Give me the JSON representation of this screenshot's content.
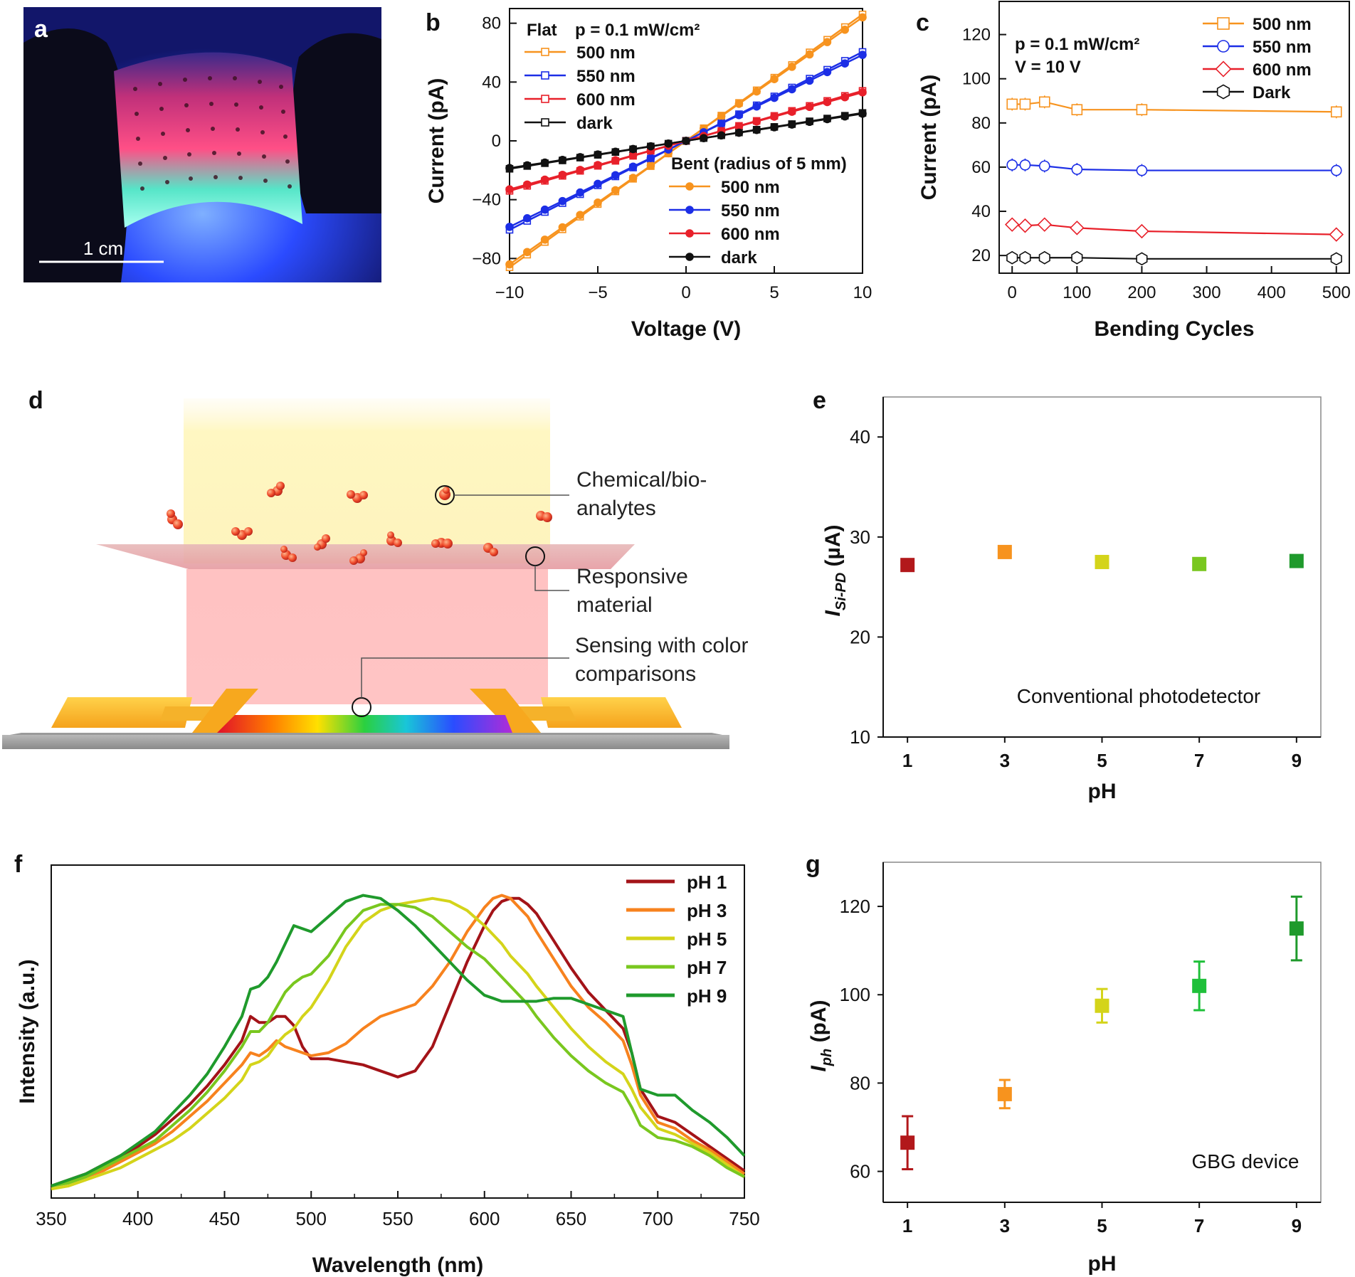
{
  "figure": {
    "panels": [
      "a",
      "b",
      "c",
      "d",
      "e",
      "f",
      "g"
    ]
  },
  "panel_a": {
    "label": "a",
    "scale_bar_label": "1 cm",
    "description_colors": [
      "#1a1f6b",
      "#e0467a",
      "#38e0b8",
      "#3a5cff"
    ]
  },
  "panel_d": {
    "label": "d",
    "callout_analytes_1": "Chemical/bio-",
    "callout_analytes_2": "analytes",
    "callout_material_1": "Responsive",
    "callout_material_2": "material",
    "callout_sensing_1": "Sensing with color",
    "callout_sensing_2": "comparisons"
  },
  "chart_data": [
    {
      "id": "b",
      "type": "line",
      "label": "b",
      "xlabel": "Voltage (V)",
      "ylabel": "Current (pA)",
      "xlim": [
        -10,
        10
      ],
      "ylim": [
        -90,
        90
      ],
      "xticks": [
        -10,
        -5,
        0,
        5,
        10
      ],
      "xtick_labels": [
        "−10",
        "−5",
        "0",
        "5",
        "10"
      ],
      "yticks": [
        -80,
        -40,
        0,
        40,
        80
      ],
      "ytick_labels": [
        "−80",
        "−40",
        "0",
        "40",
        "80"
      ],
      "legend_flat_title": "Flat",
      "legend_power": "p = 0.1 mW/cm²",
      "legend_bent_title": "Bent (radius of 5 mm)",
      "series": [
        {
          "name": "500 nm",
          "group": "flat",
          "color": "#f7931e",
          "slope": 8.6,
          "marker": "open-square"
        },
        {
          "name": "550 nm",
          "group": "flat",
          "color": "#1c2ee6",
          "slope": 6.05,
          "marker": "open-square"
        },
        {
          "name": "600 nm",
          "group": "flat",
          "color": "#e8202a",
          "slope": 3.4,
          "marker": "open-square"
        },
        {
          "name": "dark",
          "group": "flat",
          "color": "#111111",
          "slope": 1.9,
          "marker": "open-square"
        },
        {
          "name": "500 nm",
          "group": "bent",
          "color": "#f7931e",
          "slope": 8.4,
          "marker": "filled-circle"
        },
        {
          "name": "550 nm",
          "group": "bent",
          "color": "#1c2ee6",
          "slope": 5.85,
          "marker": "filled-circle"
        },
        {
          "name": "600 nm",
          "group": "bent",
          "color": "#e8202a",
          "slope": 3.3,
          "marker": "filled-circle"
        },
        {
          "name": "dark",
          "group": "bent",
          "color": "#111111",
          "slope": 1.85,
          "marker": "filled-circle"
        }
      ]
    },
    {
      "id": "c",
      "type": "line",
      "label": "c",
      "xlabel": "Bending Cycles",
      "ylabel": "Current (pA)",
      "xlim": [
        -20,
        520
      ],
      "ylim": [
        12,
        135
      ],
      "xticks": [
        0,
        100,
        200,
        300,
        400,
        500
      ],
      "yticks": [
        20,
        40,
        60,
        80,
        100,
        120
      ],
      "annotation_power": "p = 0.1 mW/cm²",
      "annotation_voltage": "V = 10 V",
      "x": [
        0,
        20,
        50,
        100,
        200,
        500
      ],
      "series": [
        {
          "name": "500 nm",
          "color": "#f7931e",
          "marker": "square",
          "values": [
            88.5,
            88.5,
            89.5,
            86,
            86,
            85
          ]
        },
        {
          "name": "550 nm",
          "color": "#1c2ee6",
          "marker": "circle",
          "values": [
            61,
            61,
            60.5,
            59,
            58.5,
            58.5
          ]
        },
        {
          "name": "600 nm",
          "color": "#e8202a",
          "marker": "diamond",
          "values": [
            34,
            33.5,
            34,
            32.5,
            31,
            29.5
          ]
        },
        {
          "name": "Dark",
          "color": "#111111",
          "marker": "hexagon",
          "values": [
            19,
            19,
            19,
            19,
            18.5,
            18.5
          ]
        }
      ]
    },
    {
      "id": "e",
      "type": "scatter",
      "label": "e",
      "xlabel": "pH",
      "ylabel": "I",
      "ylabel_sub": "Si-PD",
      "ylabel_unit": " (µA)",
      "xlim": [
        0.5,
        9.5
      ],
      "ylim": [
        10,
        44
      ],
      "xticks": [
        1,
        3,
        5,
        7,
        9
      ],
      "yticks": [
        10,
        20,
        30,
        40
      ],
      "annotation": "Conventional photodetector",
      "points": [
        {
          "x": 1,
          "y": 27.2,
          "color": "#b2181b"
        },
        {
          "x": 3,
          "y": 28.5,
          "color": "#f7931e"
        },
        {
          "x": 5,
          "y": 27.5,
          "color": "#d4d41a"
        },
        {
          "x": 7,
          "y": 27.3,
          "color": "#79c71f"
        },
        {
          "x": 9,
          "y": 27.6,
          "color": "#1f9a2c"
        }
      ]
    },
    {
      "id": "f",
      "type": "line",
      "label": "f",
      "xlabel": "Wavelength (nm)",
      "ylabel": "Intensity (a.u.)",
      "xlim": [
        350,
        750
      ],
      "ylim": [
        0,
        1.1
      ],
      "xticks": [
        350,
        400,
        450,
        500,
        550,
        600,
        650,
        700,
        750
      ],
      "x": [
        350,
        360,
        370,
        380,
        390,
        400,
        410,
        420,
        430,
        440,
        450,
        460,
        465,
        470,
        475,
        480,
        485,
        490,
        495,
        500,
        510,
        520,
        530,
        540,
        550,
        560,
        570,
        580,
        590,
        600,
        605,
        610,
        615,
        620,
        625,
        630,
        640,
        650,
        660,
        670,
        680,
        685,
        690,
        700,
        710,
        720,
        730,
        740,
        750
      ],
      "series": [
        {
          "name": "pH 1",
          "color": "#a31318",
          "values": [
            0.04,
            0.06,
            0.08,
            0.11,
            0.14,
            0.17,
            0.21,
            0.26,
            0.31,
            0.37,
            0.44,
            0.52,
            0.6,
            0.58,
            0.58,
            0.6,
            0.6,
            0.57,
            0.5,
            0.46,
            0.46,
            0.45,
            0.44,
            0.42,
            0.4,
            0.42,
            0.5,
            0.64,
            0.78,
            0.9,
            0.95,
            0.98,
            0.99,
            0.99,
            0.97,
            0.94,
            0.85,
            0.76,
            0.68,
            0.62,
            0.56,
            0.48,
            0.36,
            0.27,
            0.25,
            0.21,
            0.17,
            0.13,
            0.09
          ]
        },
        {
          "name": "pH 3",
          "color": "#f7821e",
          "values": [
            0.04,
            0.05,
            0.07,
            0.09,
            0.12,
            0.15,
            0.18,
            0.22,
            0.27,
            0.32,
            0.38,
            0.44,
            0.48,
            0.47,
            0.49,
            0.52,
            0.5,
            0.49,
            0.48,
            0.47,
            0.48,
            0.51,
            0.56,
            0.6,
            0.62,
            0.64,
            0.7,
            0.78,
            0.88,
            0.96,
            0.99,
            1.0,
            0.99,
            0.96,
            0.93,
            0.88,
            0.79,
            0.7,
            0.63,
            0.58,
            0.52,
            0.44,
            0.34,
            0.25,
            0.23,
            0.19,
            0.16,
            0.12,
            0.08
          ]
        },
        {
          "name": "pH 5",
          "color": "#d4d41a",
          "values": [
            0.03,
            0.04,
            0.06,
            0.08,
            0.1,
            0.13,
            0.16,
            0.19,
            0.23,
            0.28,
            0.33,
            0.39,
            0.44,
            0.45,
            0.47,
            0.51,
            0.54,
            0.56,
            0.6,
            0.63,
            0.72,
            0.83,
            0.91,
            0.95,
            0.97,
            0.98,
            0.99,
            0.98,
            0.95,
            0.9,
            0.87,
            0.84,
            0.8,
            0.77,
            0.74,
            0.7,
            0.63,
            0.56,
            0.5,
            0.45,
            0.41,
            0.36,
            0.3,
            0.23,
            0.21,
            0.18,
            0.15,
            0.11,
            0.07
          ]
        },
        {
          "name": "pH 7",
          "color": "#79c71f",
          "values": [
            0.04,
            0.05,
            0.07,
            0.1,
            0.13,
            0.16,
            0.19,
            0.24,
            0.29,
            0.35,
            0.42,
            0.5,
            0.55,
            0.55,
            0.58,
            0.63,
            0.68,
            0.71,
            0.73,
            0.74,
            0.8,
            0.89,
            0.95,
            0.97,
            0.97,
            0.96,
            0.93,
            0.88,
            0.83,
            0.79,
            0.76,
            0.73,
            0.7,
            0.67,
            0.64,
            0.6,
            0.53,
            0.47,
            0.42,
            0.38,
            0.35,
            0.3,
            0.24,
            0.2,
            0.19,
            0.17,
            0.14,
            0.1,
            0.07
          ]
        },
        {
          "name": "pH 9",
          "color": "#1f9a2c",
          "values": [
            0.04,
            0.06,
            0.08,
            0.11,
            0.14,
            0.18,
            0.22,
            0.28,
            0.34,
            0.41,
            0.5,
            0.6,
            0.69,
            0.7,
            0.73,
            0.78,
            0.84,
            0.9,
            0.89,
            0.88,
            0.93,
            0.98,
            1.0,
            0.99,
            0.95,
            0.9,
            0.84,
            0.78,
            0.72,
            0.67,
            0.66,
            0.65,
            0.65,
            0.65,
            0.65,
            0.65,
            0.66,
            0.66,
            0.64,
            0.62,
            0.6,
            0.48,
            0.36,
            0.34,
            0.34,
            0.29,
            0.25,
            0.2,
            0.14
          ]
        }
      ]
    },
    {
      "id": "g",
      "type": "scatter",
      "label": "g",
      "xlabel": "pH",
      "ylabel": "I",
      "ylabel_sub": "ph",
      "ylabel_unit": " (pA)",
      "xlim": [
        0.5,
        9.5
      ],
      "ylim": [
        53,
        130
      ],
      "xticks": [
        1,
        3,
        5,
        7,
        9
      ],
      "yticks": [
        60,
        80,
        100,
        120
      ],
      "annotation": "GBG device",
      "points": [
        {
          "x": 1,
          "y": 66.5,
          "err": 6,
          "color": "#b2181b"
        },
        {
          "x": 3,
          "y": 77.5,
          "err": 3.2,
          "color": "#f7931e"
        },
        {
          "x": 5,
          "y": 97.5,
          "err": 3.8,
          "color": "#d4d41a"
        },
        {
          "x": 7,
          "y": 102,
          "err": 5.5,
          "color": "#1fc03a"
        },
        {
          "x": 9,
          "y": 115,
          "err": 7.2,
          "color": "#1f9a2c"
        }
      ]
    }
  ]
}
